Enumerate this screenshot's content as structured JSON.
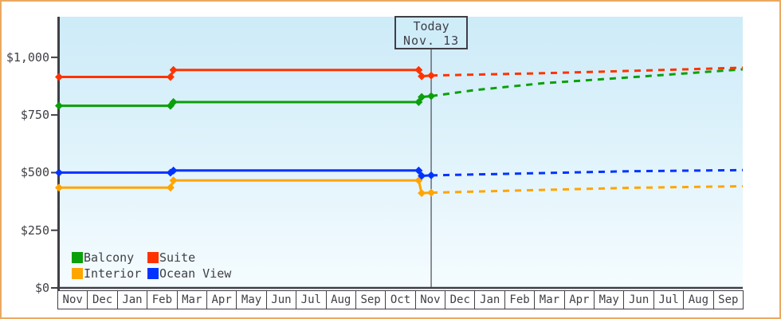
{
  "window": {
    "border_color": "#EBA95F",
    "background": "#FFFFFF"
  },
  "chart_data": {
    "type": "line",
    "description": "Cruise cabin price history and dashed forecast by month",
    "months": [
      "Nov",
      "Dec",
      "Jan",
      "Feb",
      "Mar",
      "Apr",
      "May",
      "Jun",
      "Jul",
      "Aug",
      "Sep",
      "Oct",
      "Nov",
      "Dec",
      "Jan",
      "Feb",
      "Mar",
      "Apr",
      "May",
      "Jun",
      "Jul",
      "Aug",
      "Sep"
    ],
    "y_ticks": [
      {
        "label": "$0",
        "value": 0
      },
      {
        "label": "$250",
        "value": 250
      },
      {
        "label": "$500",
        "value": 500
      },
      {
        "label": "$750",
        "value": 750
      },
      {
        "label": "$1,000",
        "value": 1000
      }
    ],
    "ylim": [
      0,
      1176
    ],
    "xlim_months": [
      0,
      23
    ],
    "grid": false,
    "legend_position": "bottom-left",
    "today": {
      "label": "Today",
      "date": "Nov. 13",
      "month_position": 12.52
    },
    "colors": {
      "axis": "#3F3F46",
      "text": "#3F3F46",
      "today_line": "#4A4A52",
      "plot_top": "#CDEBF8",
      "plot_bottom": "#F5FCFF"
    },
    "series": [
      {
        "name": "Balcony",
        "color": "#0AA00A",
        "solid": [
          [
            0,
            790
          ],
          [
            3.75,
            790
          ],
          [
            3.85,
            806
          ],
          [
            12.1,
            806
          ],
          [
            12.2,
            828
          ],
          [
            12.52,
            832
          ]
        ],
        "dashed": [
          [
            12.52,
            832
          ],
          [
            14,
            858
          ],
          [
            16.3,
            888
          ],
          [
            19.2,
            913
          ],
          [
            23,
            948
          ]
        ],
        "markers": [
          [
            0,
            790
          ],
          [
            3.75,
            790
          ],
          [
            3.85,
            806
          ],
          [
            12.1,
            806
          ],
          [
            12.2,
            828
          ],
          [
            12.52,
            832
          ]
        ]
      },
      {
        "name": "Suite",
        "color": "#FF3300",
        "solid": [
          [
            0,
            915
          ],
          [
            3.75,
            915
          ],
          [
            3.85,
            945
          ],
          [
            12.1,
            945
          ],
          [
            12.2,
            918
          ],
          [
            12.52,
            921
          ]
        ],
        "dashed": [
          [
            12.52,
            921
          ],
          [
            16.3,
            931
          ],
          [
            19.2,
            941
          ],
          [
            23,
            955
          ]
        ],
        "markers": [
          [
            0,
            915
          ],
          [
            3.75,
            915
          ],
          [
            3.85,
            945
          ],
          [
            12.1,
            945
          ],
          [
            12.2,
            918
          ],
          [
            12.52,
            921
          ]
        ]
      },
      {
        "name": "Interior",
        "color": "#FFA500",
        "solid": [
          [
            0,
            435
          ],
          [
            3.75,
            435
          ],
          [
            3.85,
            466
          ],
          [
            12.1,
            466
          ],
          [
            12.2,
            411
          ],
          [
            12.52,
            413
          ]
        ],
        "dashed": [
          [
            12.52,
            413
          ],
          [
            16.3,
            425
          ],
          [
            19.2,
            434
          ],
          [
            23,
            441
          ]
        ],
        "markers": [
          [
            0,
            435
          ],
          [
            3.75,
            435
          ],
          [
            3.85,
            466
          ],
          [
            12.1,
            466
          ],
          [
            12.2,
            411
          ],
          [
            12.52,
            413
          ]
        ]
      },
      {
        "name": "Ocean View",
        "color": "#0033FF",
        "solid": [
          [
            0,
            500
          ],
          [
            3.75,
            500
          ],
          [
            3.85,
            509
          ],
          [
            12.1,
            509
          ],
          [
            12.2,
            486
          ],
          [
            12.52,
            488
          ]
        ],
        "dashed": [
          [
            12.52,
            488
          ],
          [
            16.3,
            498
          ],
          [
            19.2,
            506
          ],
          [
            23,
            511
          ]
        ],
        "markers": [
          [
            0,
            500
          ],
          [
            3.75,
            500
          ],
          [
            3.85,
            509
          ],
          [
            12.1,
            509
          ],
          [
            12.2,
            486
          ],
          [
            12.52,
            488
          ]
        ]
      }
    ],
    "legend_order": [
      "Balcony",
      "Suite",
      "Interior",
      "Ocean View"
    ]
  }
}
